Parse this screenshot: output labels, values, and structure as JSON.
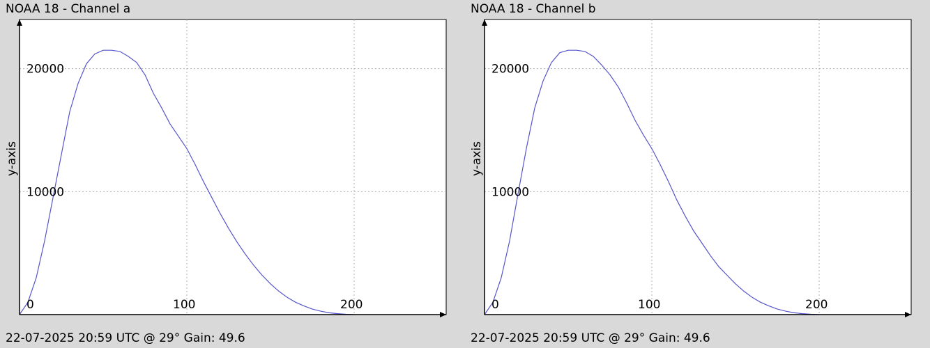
{
  "chart_data": [
    {
      "type": "line",
      "title": "NOAA 18 - Channel a",
      "footer": "22-07-2025 20:59 UTC @ 29° Gain: 49.6",
      "xlabel": "",
      "ylabel": "y-axis",
      "xlim": [
        0,
        255
      ],
      "ylim": [
        0,
        24000
      ],
      "xticks": [
        0,
        100,
        200
      ],
      "yticks": [
        0,
        10000,
        20000
      ],
      "grid": true,
      "line_color": "#5555cc",
      "series": [
        {
          "x": [
            0,
            5,
            10,
            15,
            20,
            25,
            30,
            35,
            40,
            45,
            50,
            55,
            60,
            65,
            70,
            75,
            80,
            85,
            90,
            95,
            100,
            105,
            110,
            115,
            120,
            125,
            130,
            135,
            140,
            145,
            150,
            155,
            160,
            165,
            170,
            175,
            180,
            185,
            190,
            195,
            200
          ],
          "y": [
            0,
            1000,
            3000,
            6000,
            9500,
            13000,
            16500,
            18800,
            20400,
            21200,
            21500,
            21500,
            21400,
            21000,
            20500,
            19500,
            18000,
            16800,
            15500,
            14500,
            13500,
            12200,
            10800,
            9500,
            8200,
            7000,
            5900,
            4900,
            4000,
            3200,
            2500,
            1900,
            1400,
            1000,
            700,
            450,
            280,
            150,
            80,
            30,
            0
          ]
        }
      ]
    },
    {
      "type": "line",
      "title": "NOAA 18 - Channel b",
      "footer": "22-07-2025 20:59 UTC @ 29° Gain: 49.6",
      "xlabel": "",
      "ylabel": "y-axis",
      "xlim": [
        0,
        255
      ],
      "ylim": [
        0,
        24000
      ],
      "xticks": [
        0,
        100,
        200
      ],
      "yticks": [
        0,
        10000,
        20000
      ],
      "grid": true,
      "line_color": "#5555cc",
      "series": [
        {
          "x": [
            0,
            5,
            10,
            15,
            20,
            25,
            30,
            35,
            40,
            45,
            50,
            55,
            60,
            65,
            70,
            75,
            80,
            85,
            90,
            95,
            100,
            105,
            110,
            115,
            120,
            125,
            130,
            135,
            140,
            145,
            150,
            155,
            160,
            165,
            170,
            175,
            180,
            185,
            190,
            195,
            200
          ],
          "y": [
            0,
            1000,
            3000,
            6000,
            9800,
            13500,
            16800,
            19000,
            20500,
            21300,
            21500,
            21500,
            21400,
            21000,
            20300,
            19500,
            18500,
            17200,
            15800,
            14600,
            13500,
            12200,
            10800,
            9300,
            8000,
            6800,
            5800,
            4800,
            3900,
            3200,
            2500,
            1900,
            1400,
            1000,
            700,
            450,
            280,
            150,
            80,
            30,
            0
          ]
        }
      ]
    }
  ]
}
